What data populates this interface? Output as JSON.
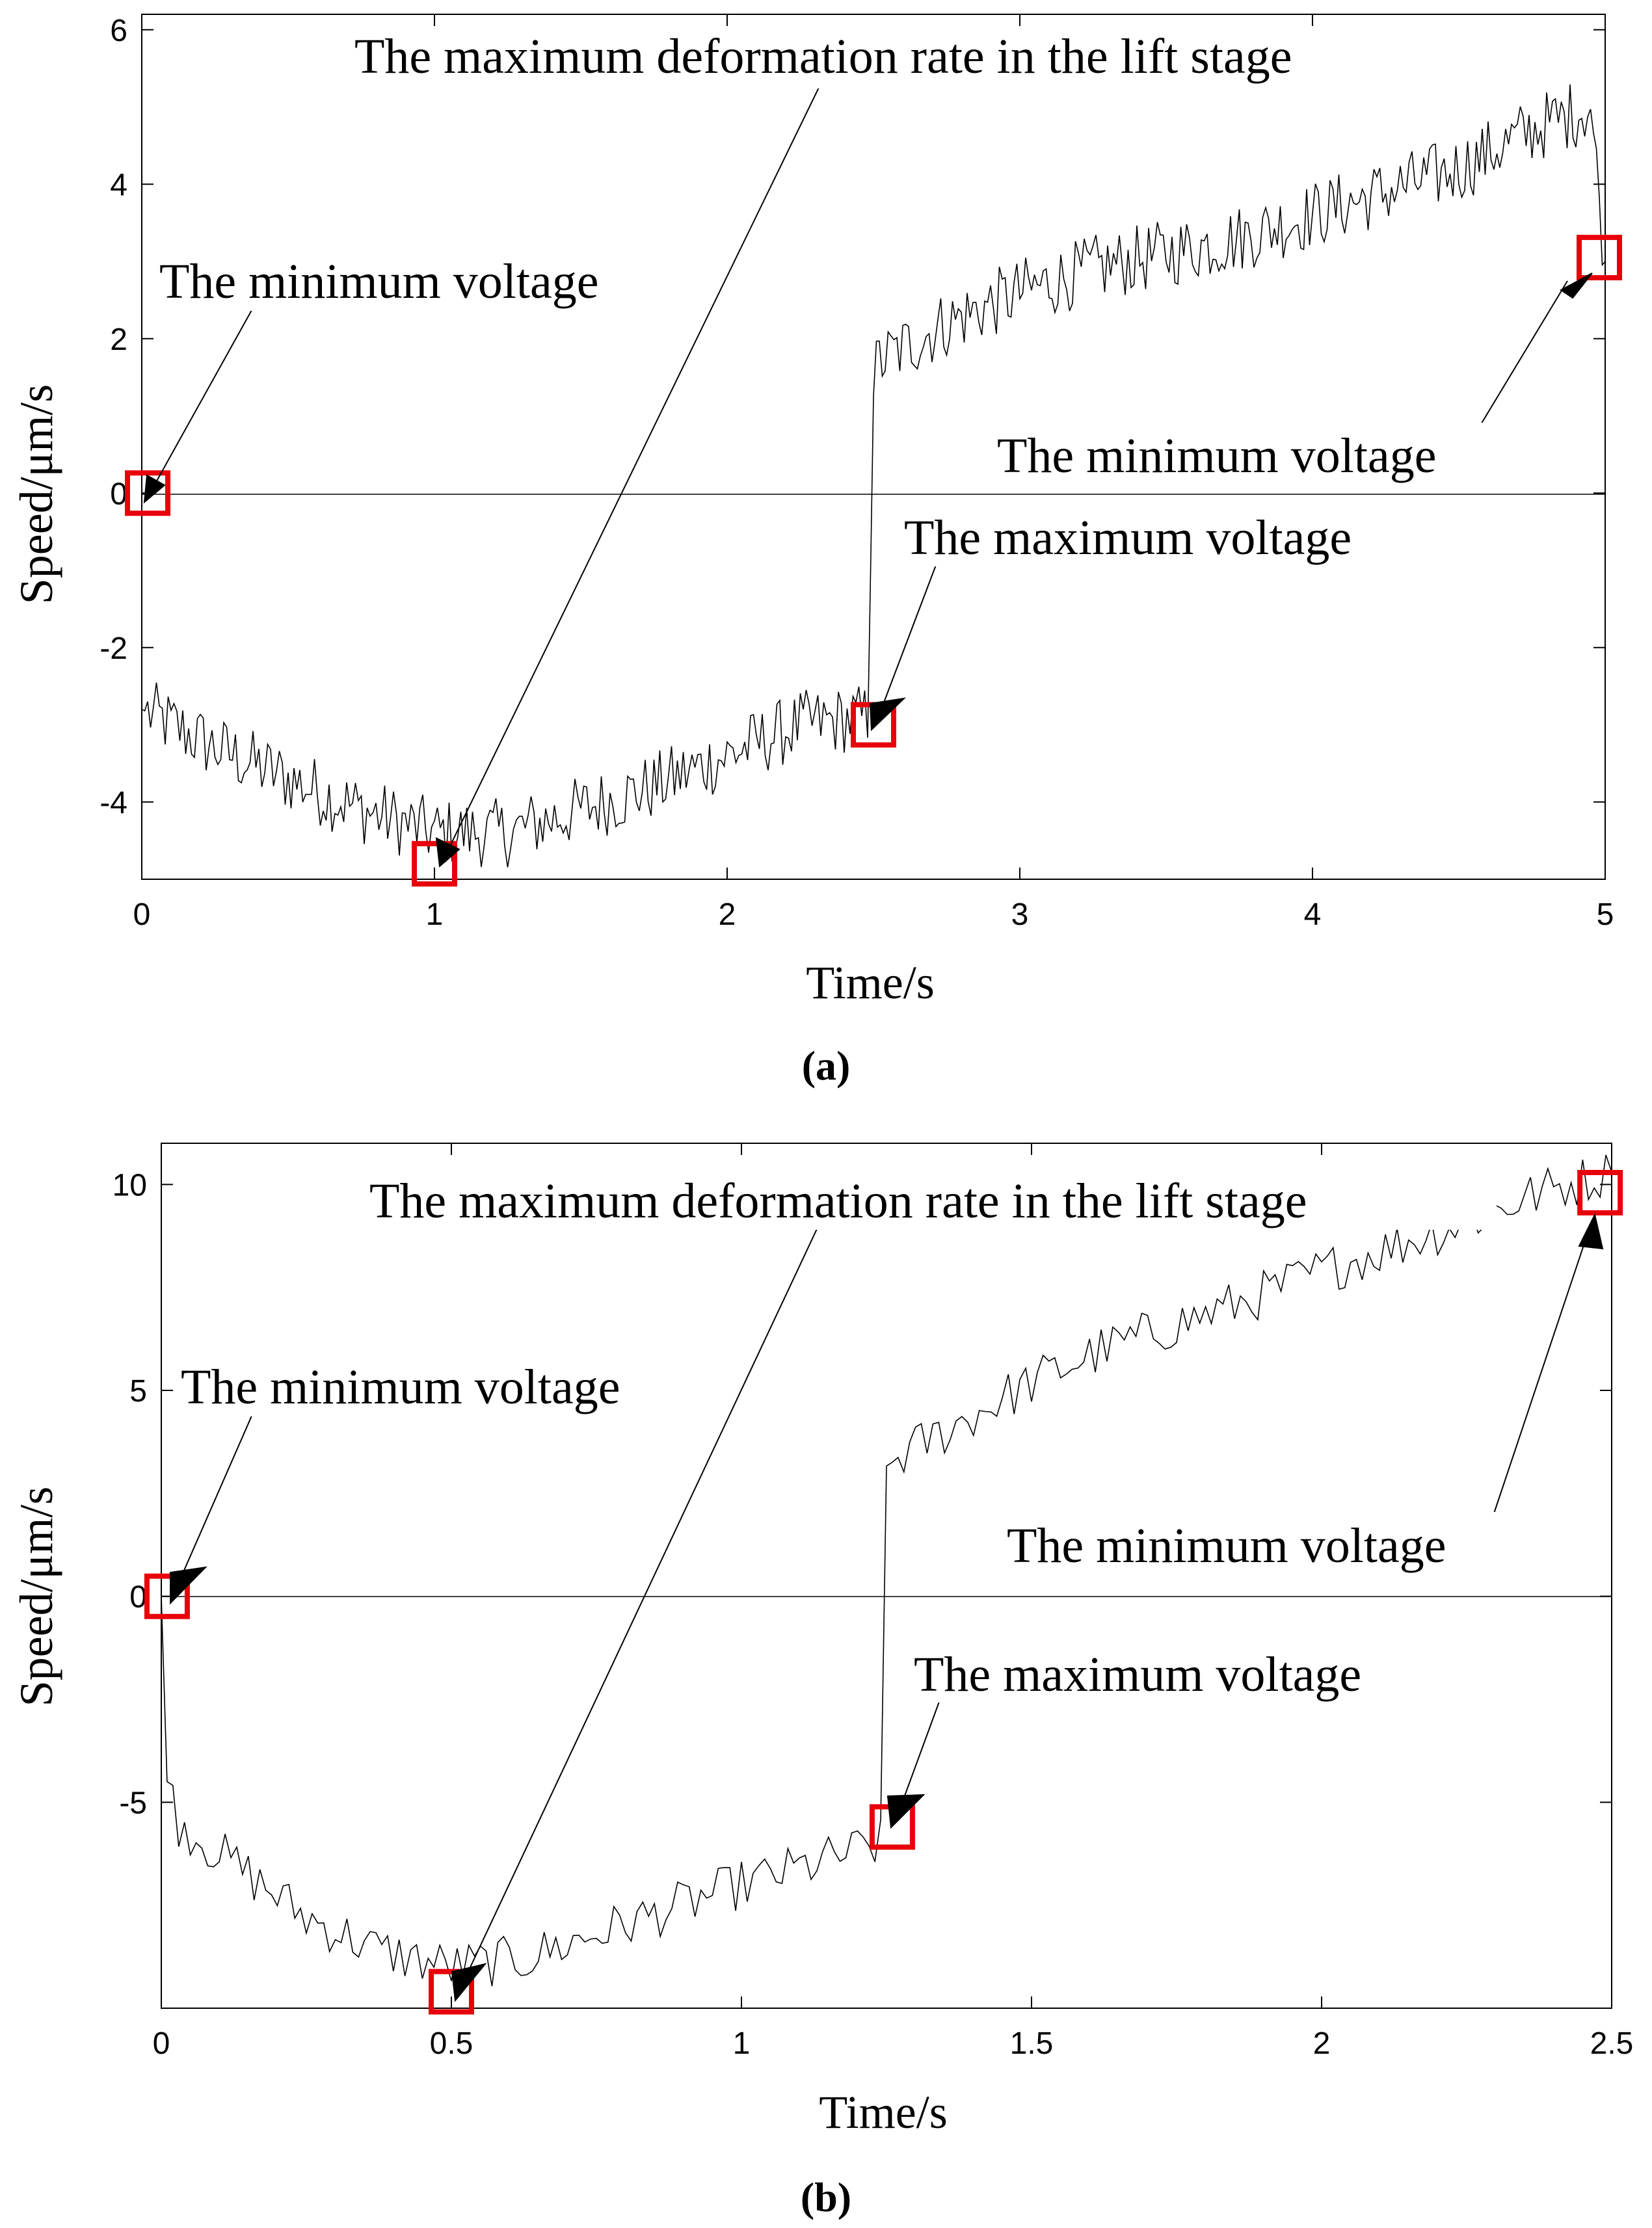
{
  "chart_data": [
    {
      "panel": "a",
      "type": "line",
      "caption": "(a)",
      "xlabel": "Time/s",
      "ylabel": "Speed/μm/s",
      "xlim": [
        0,
        5
      ],
      "ylim": [
        -5,
        6.2
      ],
      "xticks": [
        "0",
        "1",
        "2",
        "3",
        "4",
        "5"
      ],
      "yticks": [
        "-4",
        "-2",
        "0",
        "2",
        "4",
        "6"
      ],
      "grid": false,
      "zero_line": 0,
      "series": [
        {
          "name": "speed",
          "x": [
            0,
            0.25,
            0.5,
            0.75,
            1.0,
            1.25,
            1.5,
            1.75,
            2.0,
            2.25,
            2.48,
            2.5,
            2.52,
            2.75,
            3.0,
            3.25,
            3.5,
            3.75,
            4.0,
            4.25,
            4.5,
            4.75,
            4.95,
            5.0
          ],
          "y": [
            -2.8,
            -3.3,
            -3.7,
            -4.1,
            -4.4,
            -4.4,
            -4.1,
            -3.8,
            -3.4,
            -3.0,
            -2.9,
            1.5,
            1.7,
            2.2,
            2.6,
            2.9,
            3.1,
            3.3,
            3.6,
            3.9,
            4.2,
            4.7,
            5.0,
            3.0
          ],
          "noise": 0.45
        }
      ],
      "markers": [
        {
          "name": "min-voltage-start",
          "x": 0.02,
          "y": 0
        },
        {
          "name": "max-deformation-rate",
          "x": 1.0,
          "y": -4.8
        },
        {
          "name": "max-voltage",
          "x": 2.5,
          "y": -3.0
        },
        {
          "name": "min-voltage-end",
          "x": 4.98,
          "y": 3.05
        }
      ],
      "annotations": [
        {
          "text": "The maximum deformation rate in the lift stage",
          "points_to": "max-deformation-rate"
        },
        {
          "text": "The minimum voltage",
          "points_to": "min-voltage-start"
        },
        {
          "text": "The minimum voltage",
          "points_to": "min-voltage-end"
        },
        {
          "text": "The maximum voltage",
          "points_to": "max-voltage"
        }
      ]
    },
    {
      "panel": "b",
      "type": "line",
      "caption": "(b)",
      "xlabel": "Time/s",
      "ylabel": "Speed/μm/s",
      "xlim": [
        0,
        2.5
      ],
      "ylim": [
        -10,
        11
      ],
      "xticks": [
        "0",
        "0.5",
        "1",
        "1.5",
        "2",
        "2.5"
      ],
      "yticks": [
        "-5",
        "0",
        "5",
        "10"
      ],
      "grid": false,
      "zero_line": 0,
      "series": [
        {
          "name": "speed",
          "x": [
            0,
            0.01,
            0.03,
            0.125,
            0.25,
            0.375,
            0.5,
            0.625,
            0.75,
            0.875,
            1.0,
            1.125,
            1.24,
            1.25,
            1.26,
            1.375,
            1.5,
            1.625,
            1.75,
            1.875,
            2.0,
            2.125,
            2.25,
            2.375,
            2.5
          ],
          "y": [
            0,
            -4.5,
            -5.5,
            -6.5,
            -7.8,
            -8.6,
            -9.0,
            -8.8,
            -8.2,
            -7.6,
            -7.0,
            -6.5,
            -6.0,
            3.0,
            3.3,
            4.2,
            5.2,
            6.0,
            6.6,
            7.2,
            7.9,
            8.5,
            9.1,
            9.8,
            10.3
          ],
          "noise": 0.6
        }
      ],
      "markers": [
        {
          "name": "min-voltage-start",
          "x": 0.01,
          "y": 0
        },
        {
          "name": "max-deformation-rate",
          "x": 0.5,
          "y": -9.6
        },
        {
          "name": "max-voltage",
          "x": 1.26,
          "y": -5.6
        },
        {
          "name": "min-voltage-end",
          "x": 2.48,
          "y": 9.8
        }
      ],
      "annotations": [
        {
          "text": "The maximum deformation rate in the lift stage",
          "points_to": "max-deformation-rate"
        },
        {
          "text": "The minimum voltage",
          "points_to": "min-voltage-start"
        },
        {
          "text": "The minimum voltage",
          "points_to": "min-voltage-end"
        },
        {
          "text": "The maximum voltage",
          "points_to": "max-voltage"
        }
      ]
    }
  ],
  "colors": {
    "line": "#000000",
    "marker": "#e8000b",
    "axis": "#000000"
  }
}
